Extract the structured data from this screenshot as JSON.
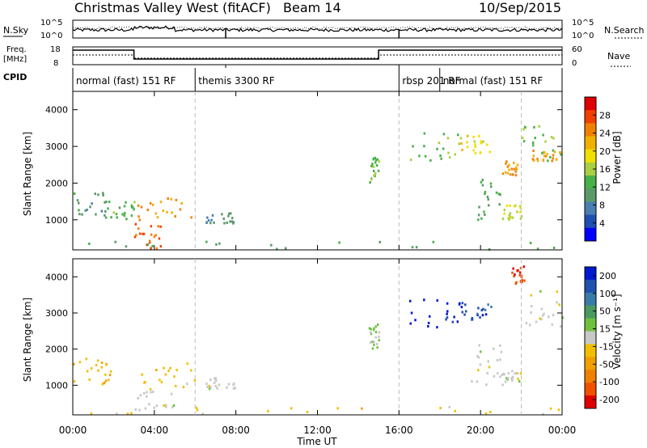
{
  "header": {
    "title": "Christmas Valley West (fitACF)",
    "beam": "Beam 14",
    "date": "10/Sep/2015"
  },
  "panels": {
    "nsky_label": "N.Sky",
    "nsearch_label": "N.Search",
    "freq_label_1": "Freq.",
    "freq_label_2": "[MHz]",
    "nave_label": "Nave",
    "cpid_label": "CPID",
    "nsky_ticks": [
      "10^5",
      "10^0"
    ],
    "nsearch_ticks": [
      "10^5",
      "10^0"
    ],
    "freq_ticks": [
      "18",
      "8"
    ],
    "nave_ticks": [
      "60",
      "0"
    ]
  },
  "cpid_modes": [
    {
      "label": "normal (fast) 151 RF",
      "start": 0,
      "end": 6
    },
    {
      "label": "themis 3300 RF",
      "start": 6,
      "end": 16
    },
    {
      "label": "rbsp 201 RF",
      "start": 16,
      "end": 18
    },
    {
      "label": "normal (fast) 151 RF",
      "start": 18,
      "end": 24
    }
  ],
  "xaxis": {
    "label": "Time UT",
    "ticks": [
      "00:00",
      "04:00",
      "08:00",
      "12:00",
      "16:00",
      "20:00",
      "00:00"
    ],
    "range_hours": [
      0,
      24
    ]
  },
  "power_panel": {
    "ylabel": "Slant Range [km]",
    "yticks": [
      "1000",
      "2000",
      "3000",
      "4000"
    ],
    "colorbar_label": "Power [dB]",
    "colorbar_ticks": [
      "4",
      "8",
      "12",
      "16",
      "20",
      "24",
      "28"
    ],
    "colors": [
      "#0000ff",
      "#1f4fb0",
      "#4a7fb0",
      "#5a9a6a",
      "#48b048",
      "#a8d040",
      "#f0e000",
      "#f0b000",
      "#f08000",
      "#f04000",
      "#e00000"
    ]
  },
  "velocity_panel": {
    "ylabel": "Slant Range [km]",
    "yticks": [
      "1000",
      "2000",
      "3000",
      "4000"
    ],
    "colorbar_label": "Velocity [m s⁻¹]",
    "colorbar_ticks": [
      "200",
      "100",
      "50",
      "15",
      "-15",
      "-50",
      "-100",
      "-200"
    ],
    "colors": [
      "#0018d0",
      "#2050b0",
      "#3a7aa8",
      "#4a9a60",
      "#70c040",
      "#c8c8c8",
      "#f0c000",
      "#f0a000",
      "#f08000",
      "#f05000",
      "#e00000"
    ]
  },
  "chart_data": [
    {
      "type": "heatmap",
      "title": "Power",
      "xlabel": "Time UT",
      "ylabel": "Slant Range [km]",
      "xlim": [
        0,
        24
      ],
      "ylim": [
        180,
        4500
      ],
      "clim": [
        0,
        32
      ],
      "regions": [
        {
          "t0": 0.0,
          "t1": 1.8,
          "r0": 1000,
          "r1": 1800,
          "level": 10
        },
        {
          "t0": 1.5,
          "t1": 3.0,
          "r0": 900,
          "r1": 1500,
          "level": 13
        },
        {
          "t0": 3.0,
          "t1": 6.0,
          "r0": 900,
          "r1": 1600,
          "level": 23
        },
        {
          "t0": 3.0,
          "t1": 4.5,
          "r0": 200,
          "r1": 900,
          "level": 27
        },
        {
          "t0": 6.5,
          "t1": 8.0,
          "r0": 900,
          "r1": 1200,
          "level": 10
        },
        {
          "t0": 14.5,
          "t1": 15.0,
          "r0": 2000,
          "r1": 2700,
          "level": 14
        },
        {
          "t0": 16.5,
          "t1": 19.0,
          "r0": 2600,
          "r1": 3400,
          "level": 14
        },
        {
          "t0": 19.0,
          "t1": 20.5,
          "r0": 2800,
          "r1": 3300,
          "level": 19
        },
        {
          "t0": 19.5,
          "t1": 21.0,
          "r0": 1000,
          "r1": 2200,
          "level": 11
        },
        {
          "t0": 21.0,
          "t1": 21.8,
          "r0": 2200,
          "r1": 2600,
          "level": 24
        },
        {
          "t0": 21.0,
          "t1": 22.0,
          "r0": 1000,
          "r1": 1400,
          "level": 17
        },
        {
          "t0": 22.0,
          "t1": 24.0,
          "r0": 2600,
          "r1": 3600,
          "level": 14
        },
        {
          "t0": 22.5,
          "t1": 24.0,
          "r0": 2600,
          "r1": 2900,
          "level": 24
        },
        {
          "t0": 0.0,
          "t1": 24.0,
          "r0": 180,
          "r1": 400,
          "level": 12
        }
      ]
    },
    {
      "type": "heatmap",
      "title": "Velocity",
      "xlabel": "Time UT",
      "ylabel": "Slant Range [km]",
      "xlim": [
        0,
        24
      ],
      "ylim": [
        180,
        4500
      ],
      "clim": [
        -250,
        250
      ],
      "regions": [
        {
          "t0": 0.0,
          "t1": 1.8,
          "r0": 1000,
          "r1": 1800,
          "level": -60
        },
        {
          "t0": 1.5,
          "t1": 6.0,
          "r0": 900,
          "r1": 1600,
          "level": -50
        },
        {
          "t0": 3.0,
          "t1": 5.0,
          "r0": 200,
          "r1": 900,
          "level": 0
        },
        {
          "t0": 6.5,
          "t1": 8.0,
          "r0": 900,
          "r1": 1200,
          "level": 0
        },
        {
          "t0": 14.5,
          "t1": 15.0,
          "r0": 2000,
          "r1": 2700,
          "level": 30
        },
        {
          "t0": 16.5,
          "t1": 19.0,
          "r0": 2600,
          "r1": 3400,
          "level": 220
        },
        {
          "t0": 19.0,
          "t1": 20.5,
          "r0": 2800,
          "r1": 3300,
          "level": 180
        },
        {
          "t0": 19.5,
          "t1": 21.0,
          "r0": 1000,
          "r1": 2200,
          "level": 0
        },
        {
          "t0": 21.0,
          "t1": 22.0,
          "r0": 1000,
          "r1": 1400,
          "level": 0
        },
        {
          "t0": 22.0,
          "t1": 24.0,
          "r0": 2600,
          "r1": 3600,
          "level": 0
        },
        {
          "t0": 21.5,
          "t1": 22.2,
          "r0": 3800,
          "r1": 4300,
          "level": -200
        },
        {
          "t0": 0.0,
          "t1": 24.0,
          "r0": 180,
          "r1": 400,
          "level": -40
        }
      ]
    }
  ]
}
